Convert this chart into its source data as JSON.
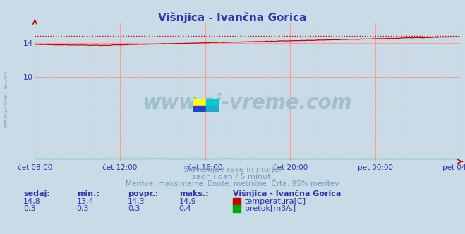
{
  "title": "Višnjica - Ivančna Gorica",
  "bg_color": "#c8dce8",
  "plot_bg_color": "#c8dce8",
  "grid_major_color": "#ff9999",
  "grid_minor_color": "#ffbbbb",
  "temp_color": "#cc0000",
  "flow_color": "#00aa00",
  "temp_min": 13.4,
  "temp_max": 14.9,
  "temp_avg": 14.3,
  "temp_cur": 14.8,
  "flow_min": 0.3,
  "flow_max": 0.4,
  "flow_avg": 0.3,
  "flow_cur": 0.3,
  "ylim_min": 0.0,
  "ylim_max": 16.5,
  "yticks": [
    10,
    14
  ],
  "x_labels": [
    "čet 08:00",
    "čet 12:00",
    "čet 16:00",
    "čet 20:00",
    "pet 00:00",
    "pet 04:00"
  ],
  "n_points": 288,
  "watermark": "www.si-vreme.com",
  "subtitle1": "Slovenija / reke in morje.",
  "subtitle2": "zadnji dan / 5 minut.",
  "subtitle3": "Meritve: maksimalne  Enote: metrične  Črta: 95% meritev",
  "legend_title": "Višnjica - Ivančna Gorica",
  "legend_temp": "temperatura[C]",
  "legend_flow": "pretok[m3/s]",
  "label_sedaj": "sedaj:",
  "label_min": "min.:",
  "label_povpr": "povpr.:",
  "label_maks": "maks.:",
  "sidebar_text": "www.si-vreme.com",
  "font_color_blue": "#3333aa",
  "font_color_light": "#7799bb",
  "arrow_color": "#cc0000"
}
